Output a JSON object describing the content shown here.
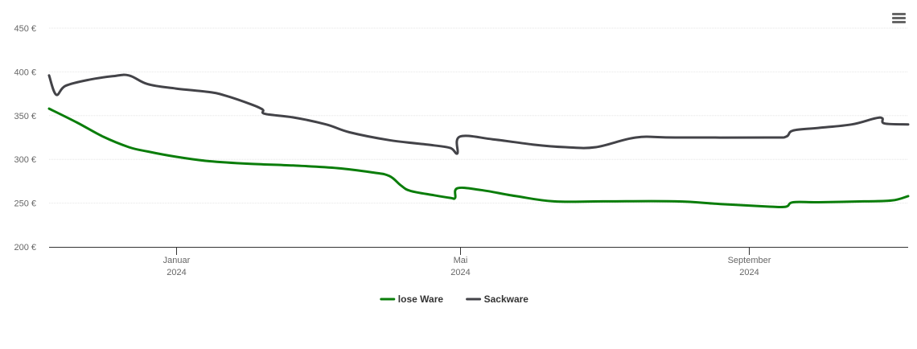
{
  "menu": {
    "icon": "hamburger-menu-icon"
  },
  "chart_data": {
    "type": "line",
    "title": "",
    "xlabel": "",
    "ylabel": "",
    "ylim": [
      200,
      450
    ],
    "xlim": [
      "2023-11-08",
      "2024-11-08"
    ],
    "y_ticks": [
      200,
      250,
      300,
      350,
      400,
      450
    ],
    "y_tick_labels": [
      "200 €",
      "250 €",
      "300 €",
      "350 €",
      "400 €",
      "450 €"
    ],
    "x_ticks": [
      {
        "date": "2024-01-01",
        "month": "Januar",
        "year": "2024"
      },
      {
        "date": "2024-05-01",
        "month": "Mai",
        "year": "2024"
      },
      {
        "date": "2024-09-01",
        "month": "September",
        "year": "2024"
      }
    ],
    "grid": true,
    "legend_position": "bottom-center",
    "series": [
      {
        "name": "lose Ware",
        "color": "#0a7d0a",
        "points": [
          [
            "2023-11-08",
            358
          ],
          [
            "2023-11-20",
            342
          ],
          [
            "2023-12-01",
            326
          ],
          [
            "2023-12-12",
            314
          ],
          [
            "2023-12-20",
            309
          ],
          [
            "2024-01-01",
            303
          ],
          [
            "2024-01-15",
            298
          ],
          [
            "2024-02-01",
            295
          ],
          [
            "2024-02-20",
            293
          ],
          [
            "2024-03-10",
            290
          ],
          [
            "2024-03-25",
            285
          ],
          [
            "2024-04-01",
            281
          ],
          [
            "2024-04-06",
            270
          ],
          [
            "2024-04-10",
            264
          ],
          [
            "2024-04-20",
            259
          ],
          [
            "2024-04-27",
            256
          ],
          [
            "2024-04-29",
            256
          ],
          [
            "2024-04-30",
            267
          ],
          [
            "2024-05-10",
            265
          ],
          [
            "2024-05-25",
            258
          ],
          [
            "2024-06-10",
            252
          ],
          [
            "2024-07-01",
            252
          ],
          [
            "2024-08-01",
            252
          ],
          [
            "2024-08-20",
            249
          ],
          [
            "2024-09-10",
            246
          ],
          [
            "2024-09-17",
            246
          ],
          [
            "2024-09-20",
            251
          ],
          [
            "2024-10-01",
            251
          ],
          [
            "2024-10-20",
            252
          ],
          [
            "2024-11-01",
            253
          ],
          [
            "2024-11-08",
            258
          ]
        ]
      },
      {
        "name": "Sackware",
        "color": "#434348",
        "points": [
          [
            "2023-11-08",
            396
          ],
          [
            "2023-11-11",
            374
          ],
          [
            "2023-11-15",
            384
          ],
          [
            "2023-11-25",
            391
          ],
          [
            "2023-12-05",
            395
          ],
          [
            "2023-12-12",
            396
          ],
          [
            "2023-12-20",
            386
          ],
          [
            "2024-01-01",
            381
          ],
          [
            "2024-01-15",
            377
          ],
          [
            "2024-01-22",
            373
          ],
          [
            "2024-02-02",
            363
          ],
          [
            "2024-02-07",
            357
          ],
          [
            "2024-02-08",
            352
          ],
          [
            "2024-02-20",
            348
          ],
          [
            "2024-03-05",
            340
          ],
          [
            "2024-03-15",
            331
          ],
          [
            "2024-04-01",
            322
          ],
          [
            "2024-04-20",
            316
          ],
          [
            "2024-04-27",
            313
          ],
          [
            "2024-04-30",
            307
          ],
          [
            "2024-05-01",
            326
          ],
          [
            "2024-05-15",
            323
          ],
          [
            "2024-06-01",
            317
          ],
          [
            "2024-06-15",
            314
          ],
          [
            "2024-06-28",
            314
          ],
          [
            "2024-07-15",
            325
          ],
          [
            "2024-08-01",
            325
          ],
          [
            "2024-09-10",
            325
          ],
          [
            "2024-09-17",
            326
          ],
          [
            "2024-09-20",
            333
          ],
          [
            "2024-10-01",
            336
          ],
          [
            "2024-10-15",
            340
          ],
          [
            "2024-10-25",
            347
          ],
          [
            "2024-10-28",
            347
          ],
          [
            "2024-10-29",
            341
          ],
          [
            "2024-11-08",
            340
          ]
        ]
      }
    ]
  }
}
